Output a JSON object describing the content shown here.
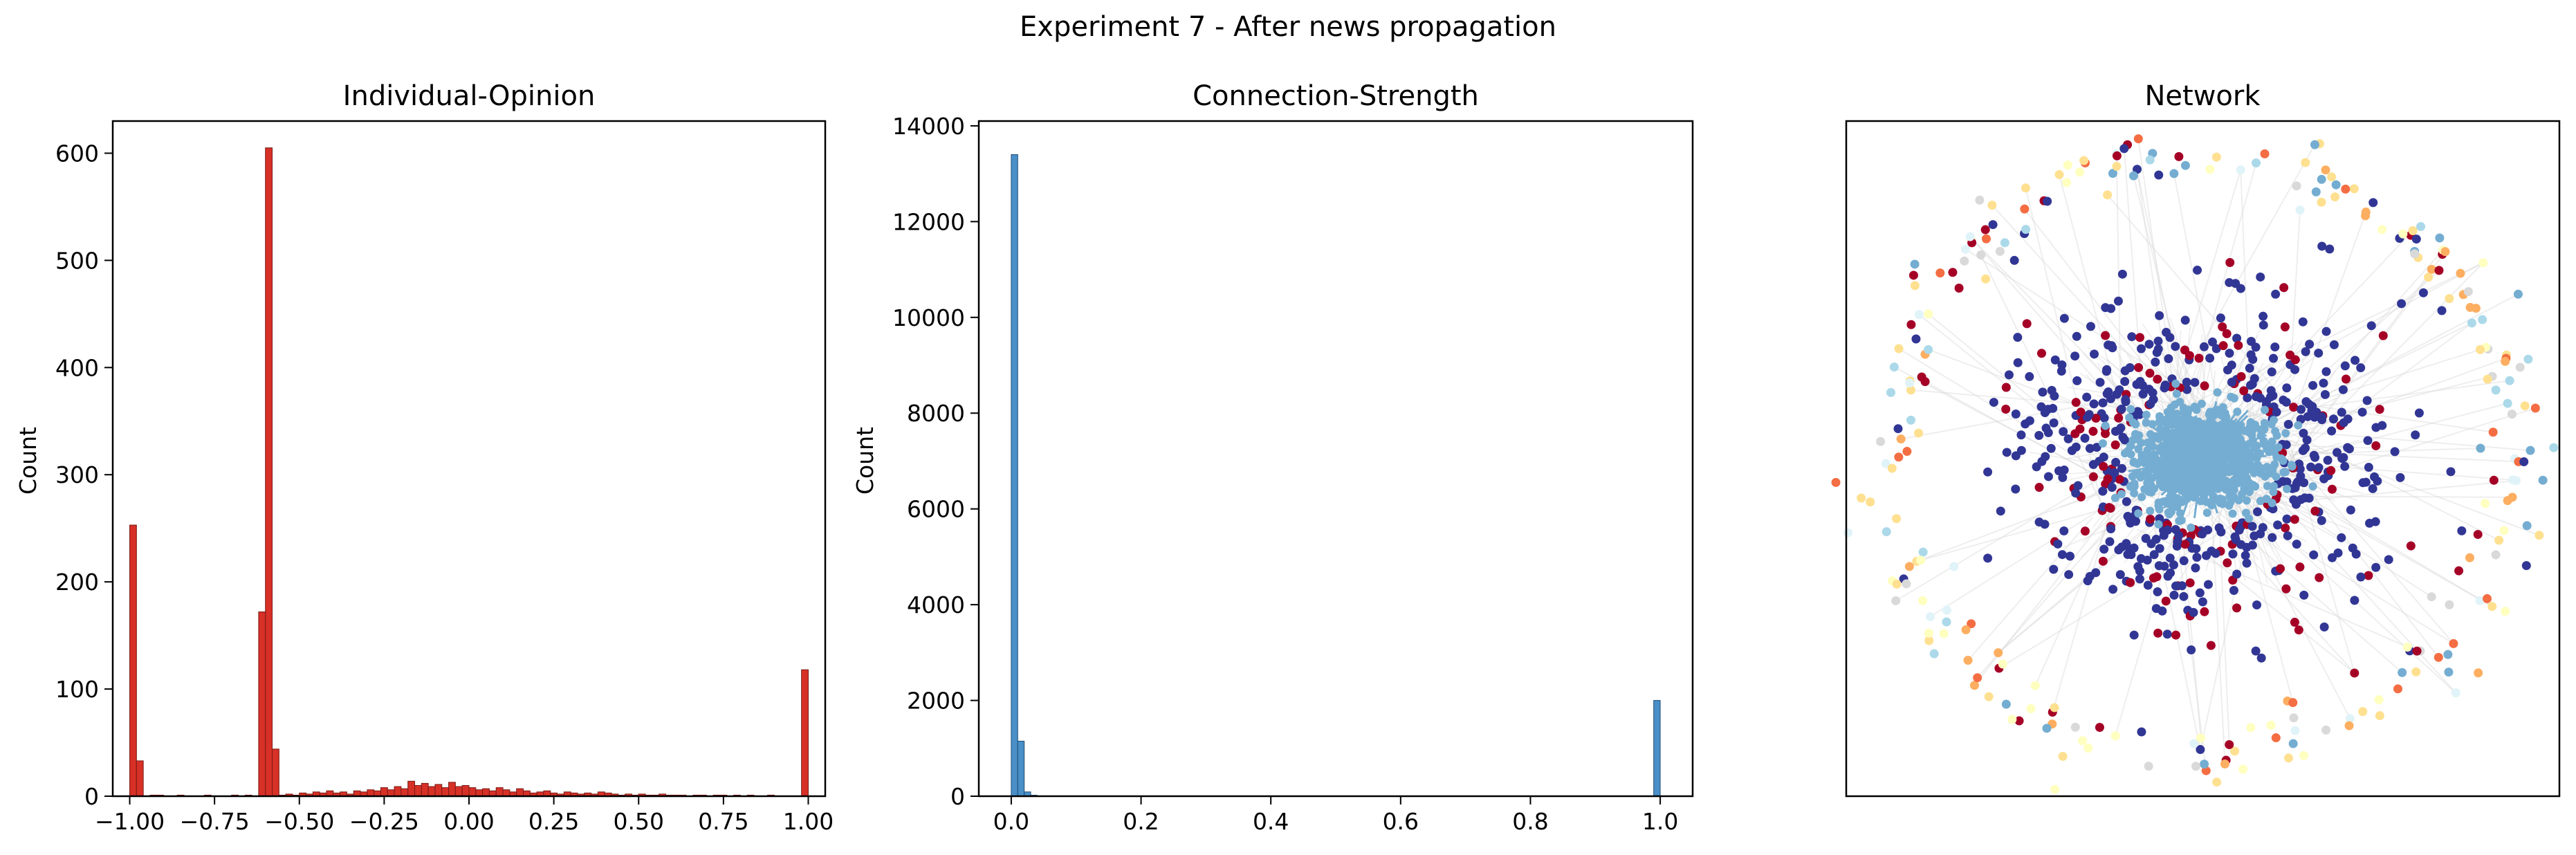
{
  "figure": {
    "title": "Experiment 7 - After news propagation"
  },
  "chart_data": [
    {
      "type": "bar",
      "title": "Individual-Opinion",
      "xlabel": "",
      "ylabel": "Count",
      "xlim": [
        -1.05,
        1.05
      ],
      "ylim": [
        0,
        630
      ],
      "color": "#d73027",
      "edge_color": "#7a1a14",
      "xticks": [
        -1.0,
        -0.75,
        -0.5,
        -0.25,
        0.0,
        0.25,
        0.5,
        0.75,
        1.0
      ],
      "xtick_labels": [
        "−1.00",
        "−0.75",
        "−0.50",
        "−0.25",
        "0.00",
        "0.25",
        "0.50",
        "0.75",
        "1.00"
      ],
      "yticks": [
        0,
        100,
        200,
        300,
        400,
        500,
        600
      ],
      "ytick_labels": [
        "0",
        "100",
        "200",
        "300",
        "400",
        "500",
        "600"
      ],
      "bin_width": 0.02,
      "bins_left": [
        -1.0,
        -0.98,
        -0.96,
        -0.94,
        -0.92,
        -0.9,
        -0.88,
        -0.86,
        -0.84,
        -0.82,
        -0.8,
        -0.78,
        -0.76,
        -0.74,
        -0.72,
        -0.7,
        -0.68,
        -0.66,
        -0.64,
        -0.62,
        -0.6,
        -0.58,
        -0.56,
        -0.54,
        -0.52,
        -0.5,
        -0.48,
        -0.46,
        -0.44,
        -0.42,
        -0.4,
        -0.38,
        -0.36,
        -0.34,
        -0.32,
        -0.3,
        -0.28,
        -0.26,
        -0.24,
        -0.22,
        -0.2,
        -0.18,
        -0.16,
        -0.14,
        -0.12,
        -0.1,
        -0.08,
        -0.06,
        -0.04,
        -0.02,
        0.0,
        0.02,
        0.04,
        0.06,
        0.08,
        0.1,
        0.12,
        0.14,
        0.16,
        0.18,
        0.2,
        0.22,
        0.24,
        0.26,
        0.28,
        0.3,
        0.32,
        0.34,
        0.36,
        0.38,
        0.4,
        0.42,
        0.44,
        0.46,
        0.48,
        0.5,
        0.52,
        0.54,
        0.56,
        0.58,
        0.6,
        0.62,
        0.64,
        0.66,
        0.68,
        0.7,
        0.72,
        0.74,
        0.76,
        0.78,
        0.8,
        0.82,
        0.84,
        0.86,
        0.88,
        0.9,
        0.92,
        0.94,
        0.96,
        0.98
      ],
      "values": [
        253,
        33,
        0,
        1,
        1,
        0,
        0,
        1,
        0,
        0,
        0,
        1,
        0,
        0,
        0,
        1,
        0,
        1,
        0,
        172,
        605,
        44,
        1,
        2,
        1,
        3,
        2,
        4,
        3,
        5,
        3,
        4,
        2,
        5,
        4,
        6,
        5,
        8,
        6,
        9,
        7,
        14,
        10,
        12,
        9,
        11,
        8,
        13,
        9,
        10,
        8,
        6,
        7,
        5,
        8,
        6,
        4,
        7,
        5,
        3,
        4,
        5,
        3,
        2,
        4,
        3,
        2,
        3,
        2,
        4,
        3,
        2,
        1,
        2,
        1,
        2,
        1,
        1,
        2,
        1,
        1,
        1,
        0,
        1,
        1,
        0,
        1,
        1,
        0,
        1,
        0,
        1,
        0,
        0,
        1,
        0,
        0,
        0,
        0,
        118
      ]
    },
    {
      "type": "bar",
      "title": "Connection-Strength",
      "xlabel": "",
      "ylabel": "Count",
      "xlim": [
        -0.05,
        1.05
      ],
      "ylim": [
        0,
        14100
      ],
      "color": "#4a8fc7",
      "edge_color": "#1f4e79",
      "xticks": [
        0.0,
        0.2,
        0.4,
        0.6,
        0.8,
        1.0
      ],
      "xtick_labels": [
        "0.0",
        "0.2",
        "0.4",
        "0.6",
        "0.8",
        "1.0"
      ],
      "yticks": [
        0,
        2000,
        4000,
        6000,
        8000,
        10000,
        12000,
        14000
      ],
      "ytick_labels": [
        "0",
        "2000",
        "4000",
        "6000",
        "8000",
        "10000",
        "12000",
        "14000"
      ],
      "bin_width": 0.01,
      "bins_left": [
        0.0,
        0.01,
        0.02,
        0.03,
        0.99
      ],
      "values": [
        13400,
        1150,
        90,
        20,
        2000
      ]
    }
  ],
  "network": {
    "title": "Network",
    "colors": [
      "#313695",
      "#a50026",
      "#74add1",
      "#fdae61",
      "#fee090",
      "#ffffbf",
      "#e0f3f8",
      "#abd9e9",
      "#f46d43",
      "#d9d9d9"
    ],
    "edge_color": "#d9d9d9"
  }
}
